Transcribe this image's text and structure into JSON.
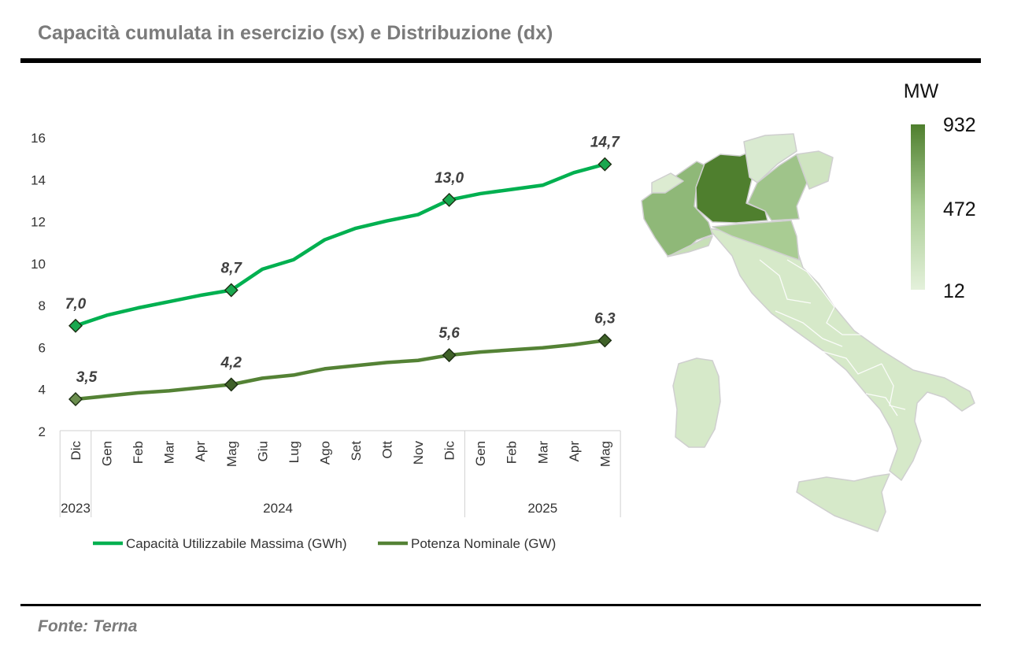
{
  "header": {
    "title": "Capacità cumulata in esercizio (sx) e Distribuzione (dx)"
  },
  "footer": {
    "source": "Fonte: Terna"
  },
  "chart_data": [
    {
      "type": "line",
      "title": "",
      "xlabel": "",
      "ylabel": "",
      "ylim": [
        2,
        16
      ],
      "yticks": [
        2,
        4,
        6,
        8,
        10,
        12,
        14,
        16
      ],
      "categories": [
        "Dic",
        "Gen",
        "Feb",
        "Mar",
        "Apr",
        "Mag",
        "Giu",
        "Lug",
        "Ago",
        "Set",
        "Ott",
        "Nov",
        "Dic",
        "Gen",
        "Feb",
        "Mar",
        "Apr",
        "Mag"
      ],
      "year_groups": [
        {
          "label": "2023",
          "start": 0,
          "end": 0
        },
        {
          "label": "2024",
          "start": 1,
          "end": 12
        },
        {
          "label": "2025",
          "start": 13,
          "end": 17
        }
      ],
      "legend": "bottom",
      "grid": false,
      "series": [
        {
          "name": "Capacità Utilizzabile Massima (GWh)",
          "color": "#00b050",
          "values": [
            7.0,
            7.5,
            7.85,
            8.15,
            8.45,
            8.7,
            9.7,
            10.15,
            11.1,
            11.65,
            12.0,
            12.3,
            13.0,
            13.3,
            13.5,
            13.7,
            14.3,
            14.7
          ],
          "markers": [
            0,
            5,
            12,
            17
          ],
          "marker_labels": [
            "7,0",
            "8,7",
            "13,0",
            "14,7"
          ]
        },
        {
          "name": "Potenza Nominale (GW)",
          "color": "#548235",
          "values": [
            3.5,
            3.65,
            3.8,
            3.9,
            4.05,
            4.2,
            4.5,
            4.65,
            4.95,
            5.1,
            5.25,
            5.35,
            5.6,
            5.75,
            5.85,
            5.95,
            6.1,
            6.3
          ],
          "markers": [
            0,
            5,
            12,
            17
          ],
          "marker_labels": [
            "3,5",
            "4,2",
            "5,6",
            "6,3"
          ]
        }
      ]
    },
    {
      "type": "heatmap",
      "title": "",
      "unit": "MW",
      "scale": {
        "min": 12,
        "mid": 472,
        "max": 932,
        "labels": [
          "932",
          "472",
          "12"
        ],
        "color_low": "#e4f1db",
        "color_high": "#4f7f2e"
      }
    }
  ]
}
